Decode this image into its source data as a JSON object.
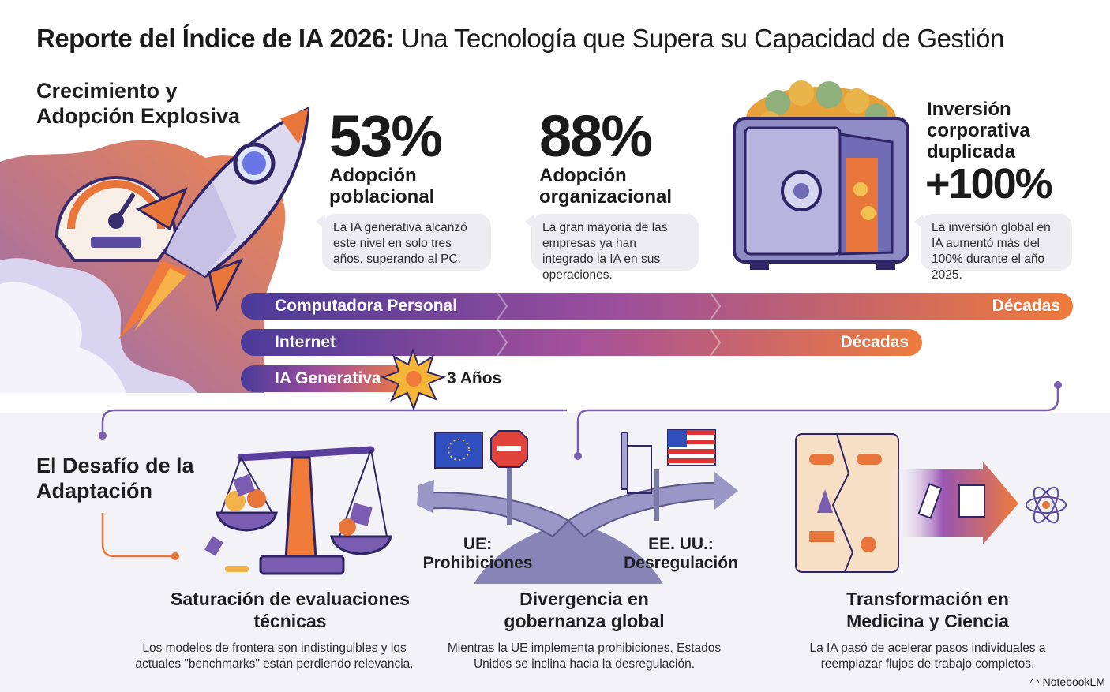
{
  "title": {
    "bold": "Reporte del Índice de IA 2026:",
    "rest": " Una Tecnología que Supera su Capacidad de Gestión"
  },
  "growth": {
    "heading": "Crecimiento y Adopción Explosiva",
    "stats": [
      {
        "value": "53%",
        "label": "Adopción poblacional",
        "note": "La IA generativa alcanzó este nivel en solo tres años, superando al PC."
      },
      {
        "value": "88%",
        "label": "Adopción organizacional",
        "note": "La gran mayoría de las empresas ya han integrado la IA en sus operaciones."
      },
      {
        "value": "+100%",
        "label": "Inversión corporativa duplicada",
        "note": "La inversión global en IA aumentó más del 100% durante el año 2025."
      }
    ]
  },
  "timeline": [
    {
      "label": "Computadora Personal",
      "end": "Décadas"
    },
    {
      "label": "Internet",
      "end": "Décadas"
    },
    {
      "label": "IA Generativa",
      "end": "3 Años"
    }
  ],
  "challenge": {
    "heading": "El Desafío de la Adaptación",
    "cards": [
      {
        "title": "Saturación de evaluaciones técnicas",
        "text": "Los modelos de frontera son indistinguibles y los actuales \"benchmarks\" están perdiendo relevancia."
      },
      {
        "title": "Divergencia en gobernanza global",
        "text": "Mientras la UE implementa prohibiciones, Estados Unidos se inclina hacia la desregulación."
      },
      {
        "title": "Transformación en Medicina y Ciencia",
        "text": "La IA pasó de acelerar pasos individuales a reemplazar flujos de trabajo completos."
      }
    ],
    "roads": {
      "left": "UE: Prohibiciones",
      "right": "EE. UU.: Desregulación"
    }
  },
  "brand": "NotebookLM",
  "colors": {
    "purple": "#5a3f9e",
    "orange": "#e8763a",
    "bubble": "#ececf2",
    "lower_bg": "#f3f2f7"
  },
  "icons": [
    "speedometer-icon",
    "rocket-icon",
    "vault-icon",
    "explosion-icon",
    "scale-icon",
    "eu-flag-icon",
    "stop-sign-icon",
    "us-flag-icon",
    "gate-icon",
    "flowchart-icon",
    "arrow-icon",
    "atom-icon"
  ]
}
